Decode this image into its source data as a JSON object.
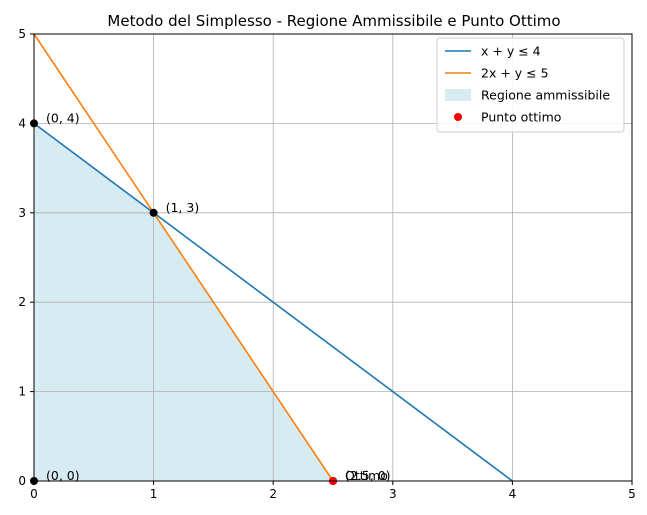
{
  "chart_data": {
    "type": "line",
    "title": "Metodo del Simplesso - Regione Ammissibile e Punto Ottimo",
    "xlabel": "",
    "ylabel": "",
    "xlim": [
      0,
      5
    ],
    "ylim": [
      0,
      5
    ],
    "xticks": [
      "0",
      "1",
      "2",
      "3",
      "4",
      "5"
    ],
    "yticks": [
      "0",
      "1",
      "2",
      "3",
      "4",
      "5"
    ],
    "grid": true,
    "legend_position": "top-right",
    "series": [
      {
        "name": "x + y ≤ 4",
        "color": "#1f77b4",
        "points": [
          [
            0,
            4
          ],
          [
            4,
            0
          ]
        ]
      },
      {
        "name": "2x + y ≤ 5",
        "color": "#ff7f0e",
        "points": [
          [
            0,
            5
          ],
          [
            2.5,
            0
          ]
        ]
      }
    ],
    "region": {
      "name": "Regione ammissibile",
      "color": "#add8e6",
      "polygon": [
        [
          0,
          0
        ],
        [
          0,
          4
        ],
        [
          1,
          3
        ],
        [
          2.5,
          0
        ]
      ]
    },
    "vertices": [
      {
        "x": 0,
        "y": 4,
        "label": "(0, 4)"
      },
      {
        "x": 1,
        "y": 3,
        "label": "(1, 3)"
      },
      {
        "x": 0,
        "y": 0,
        "label": "(0, 0)"
      },
      {
        "x": 2.5,
        "y": 0,
        "label": "(2.5, 0)"
      }
    ],
    "optimum": {
      "name": "Punto ottimo",
      "x": 2.5,
      "y": 0,
      "label": "Ottimo",
      "color": "#ff0000"
    }
  }
}
